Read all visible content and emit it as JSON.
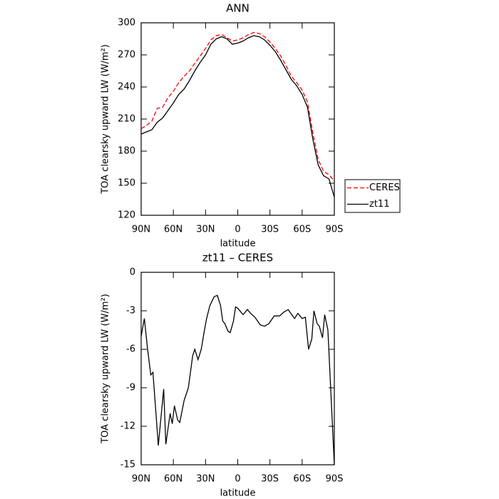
{
  "chart_data": [
    {
      "type": "line",
      "title": "ANN",
      "x_label": "latitude",
      "y_label": "TOA clearsky upward LW (W/m²)",
      "x": [
        90,
        85,
        80,
        75,
        70,
        65,
        60,
        55,
        50,
        45,
        40,
        35,
        30,
        25,
        20,
        15,
        10,
        5,
        0,
        -5,
        -10,
        -15,
        -20,
        -25,
        -30,
        -35,
        -40,
        -45,
        -50,
        -55,
        -60,
        -65,
        -70,
        -75,
        -80,
        -85,
        -90
      ],
      "series": [
        {
          "name": "CERES",
          "color": "#ff0000",
          "line_style": "dashed",
          "values": [
            201,
            204,
            208,
            220,
            221,
            230,
            236,
            244,
            250,
            255,
            262,
            269,
            276,
            284,
            288,
            289,
            286,
            283,
            284,
            286,
            289,
            291,
            290,
            287,
            282,
            276,
            269,
            260,
            250,
            244,
            237,
            226,
            197,
            172,
            161,
            158,
            152
          ]
        },
        {
          "name": "zt11",
          "color": "#000000",
          "line_style": "solid",
          "values": [
            196,
            198,
            200,
            207,
            211,
            218,
            225,
            233,
            238,
            246,
            255,
            263,
            270,
            280,
            285,
            287,
            285,
            280,
            281,
            283,
            286,
            288,
            287,
            284,
            279,
            273,
            265,
            256,
            247,
            241,
            233,
            221,
            191,
            167,
            157,
            154,
            137
          ]
        }
      ],
      "xlim": [
        90,
        -90
      ],
      "xticks": [
        {
          "value": 90,
          "label": "90N"
        },
        {
          "value": 60,
          "label": "60N"
        },
        {
          "value": 30,
          "label": "30N"
        },
        0,
        {
          "value": -30,
          "label": "30S"
        },
        {
          "value": -60,
          "label": "60S"
        },
        {
          "value": -90,
          "label": "90S"
        }
      ],
      "ylim": [
        120,
        300
      ],
      "yticks": [
        120,
        150,
        180,
        210,
        240,
        270,
        300
      ],
      "legend": "right"
    },
    {
      "type": "line",
      "title": "zt11 – CERES",
      "x_label": "latitude",
      "y_label": "TOA clearsky upward LW (W/m²)",
      "x": [
        90,
        87,
        84,
        81,
        79,
        74,
        69,
        67,
        63,
        61,
        59,
        56,
        54,
        50,
        46,
        42,
        40,
        37,
        34,
        31,
        29,
        26,
        22,
        19,
        16,
        14,
        12,
        9,
        7,
        4,
        2,
        0,
        -5,
        -9,
        -12,
        -16,
        -21,
        -25,
        -29,
        -34,
        -39,
        -43,
        -47,
        -52,
        -53,
        -56,
        -60,
        -63,
        -66,
        -69,
        -71,
        -74,
        -76,
        -79,
        -81,
        -84,
        -90
      ],
      "series": [
        {
          "name": "zt11 – CERES",
          "color": "#000000",
          "line_style": "solid",
          "values": [
            -5,
            -3.6,
            -6,
            -8,
            -7.8,
            -13.5,
            -9.1,
            -13.4,
            -11,
            -11.8,
            -10.4,
            -11.5,
            -11.7,
            -10,
            -9,
            -6.5,
            -6,
            -6.8,
            -6,
            -4.5,
            -3.6,
            -2.6,
            -1.9,
            -1.8,
            -2.6,
            -3.8,
            -4,
            -4.6,
            -4.7,
            -3.8,
            -2.7,
            -2.8,
            -3.3,
            -2.9,
            -3.2,
            -3.5,
            -4.1,
            -4.2,
            -4,
            -3.4,
            -3.4,
            -3.1,
            -2.9,
            -3.5,
            -3.6,
            -3.2,
            -3.6,
            -3.5,
            -6,
            -5.2,
            -3,
            -4,
            -4.2,
            -5.1,
            -3.3,
            -4.5,
            -15
          ]
        }
      ],
      "xlim": [
        90,
        -90
      ],
      "xticks": [
        {
          "value": 90,
          "label": "90N"
        },
        {
          "value": 60,
          "label": "60N"
        },
        {
          "value": 30,
          "label": "30N"
        },
        0,
        {
          "value": -30,
          "label": "30S"
        },
        {
          "value": -60,
          "label": "60S"
        },
        {
          "value": -90,
          "label": "90S"
        }
      ],
      "ylim": [
        -15,
        0
      ],
      "yticks": [
        -15,
        -12,
        -9,
        -6,
        -3,
        0
      ]
    }
  ]
}
